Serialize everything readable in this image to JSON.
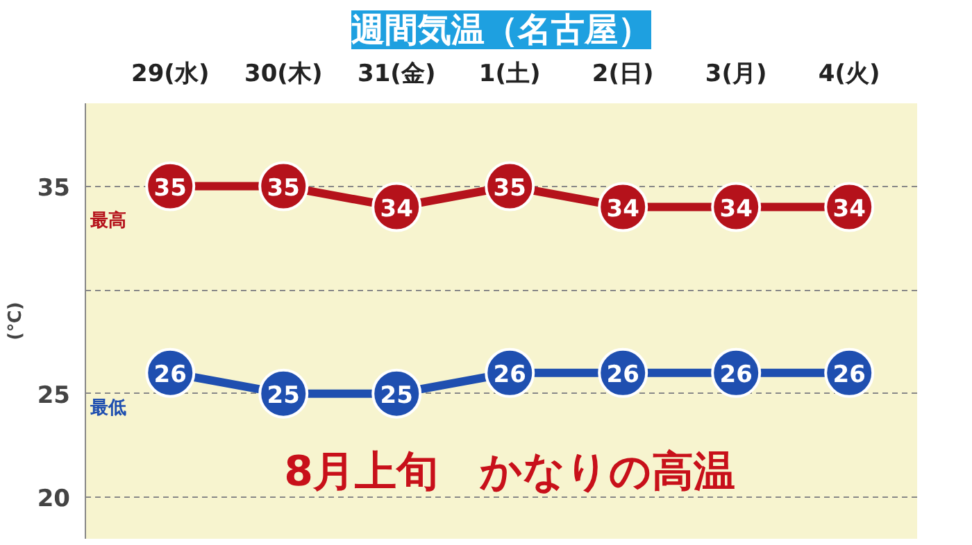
{
  "chart_data": {
    "type": "line",
    "title": "週間気温（名古屋）",
    "ylabel": "(℃)",
    "categories": [
      "29(水)",
      "30(木)",
      "31(金)",
      "1(土)",
      "2(日)",
      "3(月)",
      "4(火)"
    ],
    "series": [
      {
        "name": "最高",
        "color": "#b5121b",
        "values": [
          35,
          35,
          34,
          35,
          34,
          34,
          34
        ]
      },
      {
        "name": "最低",
        "color": "#1f4fb0",
        "values": [
          26,
          25,
          25,
          26,
          26,
          26,
          26
        ]
      }
    ],
    "ylim": [
      18,
      39
    ],
    "yticks": [
      20,
      25,
      {
        "value": 30,
        "label": null
      },
      35
    ],
    "grid": "y",
    "marker": "circle",
    "line_style": "solid",
    "data_labels": true,
    "annotations": [
      "8月上旬　かなりの高温"
    ]
  }
}
